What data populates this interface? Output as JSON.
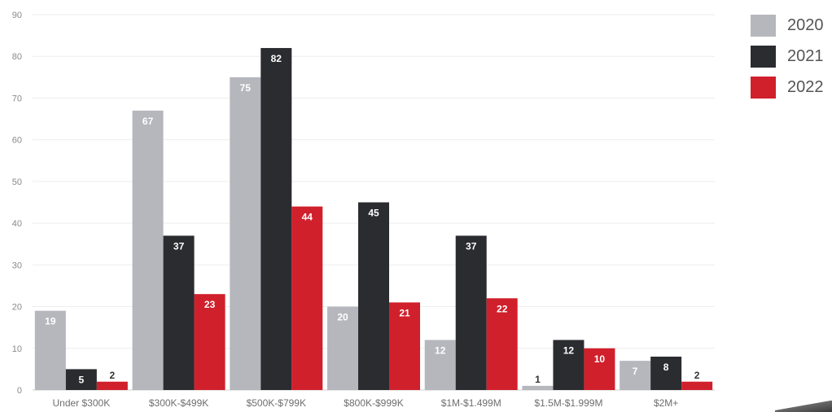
{
  "chart_data": {
    "type": "bar",
    "title": "",
    "xlabel": "",
    "ylabel": "",
    "categories": [
      "Under $300K",
      "$300K-$499K",
      "$500K-$799K",
      "$800K-$999K",
      "$1M-$1.499M",
      "$1.5M-$1.999M",
      "$2M+"
    ],
    "series": [
      {
        "name": "2020",
        "color": "#b5b7bd",
        "values": [
          19,
          67,
          75,
          20,
          12,
          1,
          7
        ]
      },
      {
        "name": "2021",
        "color": "#2b2c30",
        "values": [
          5,
          37,
          82,
          45,
          37,
          12,
          8
        ]
      },
      {
        "name": "2022",
        "color": "#d0202b",
        "values": [
          2,
          23,
          44,
          21,
          22,
          10,
          2
        ]
      }
    ],
    "ylim": [
      0,
      90
    ],
    "yticks": [
      0,
      10,
      20,
      30,
      40,
      50,
      60,
      70,
      80,
      90
    ],
    "grid": true,
    "legend_position": "top-right"
  }
}
